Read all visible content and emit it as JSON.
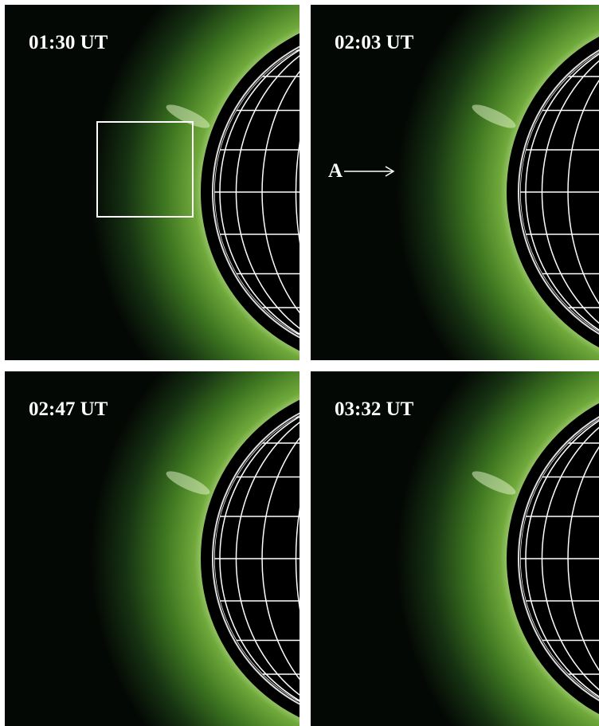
{
  "panels": [
    {
      "time": "01:30 UT"
    },
    {
      "time": "02:03 UT"
    },
    {
      "time": "02:47 UT"
    },
    {
      "time": "03:32 UT"
    }
  ],
  "annotation": {
    "label": "A"
  }
}
